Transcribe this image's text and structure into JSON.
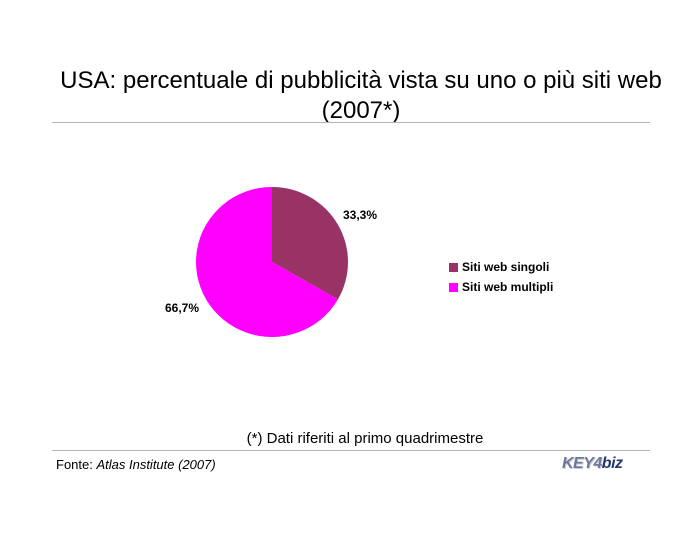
{
  "title_line1": "USA: percentuale di pubblicità vista su uno o più siti web",
  "title_line2": "(2007*)",
  "chart_data": {
    "type": "pie",
    "title": "USA: percentuale di pubblicità vista su uno o più siti web (2007*)",
    "slices": [
      {
        "name": "Siti web singoli",
        "value": 33.3,
        "label": "33,3%",
        "color": "#993366"
      },
      {
        "name": "Siti web multipli",
        "value": 66.7,
        "label": "66,7%",
        "color": "#ff00ff"
      }
    ],
    "legend_position": "right"
  },
  "footnote": "(*) Dati riferiti al primo quadrimestre",
  "source_prefix": "Fonte: ",
  "source_name": "Atlas Institute (2007)",
  "logo": {
    "part1": "KEY4",
    "part2": "biz"
  }
}
